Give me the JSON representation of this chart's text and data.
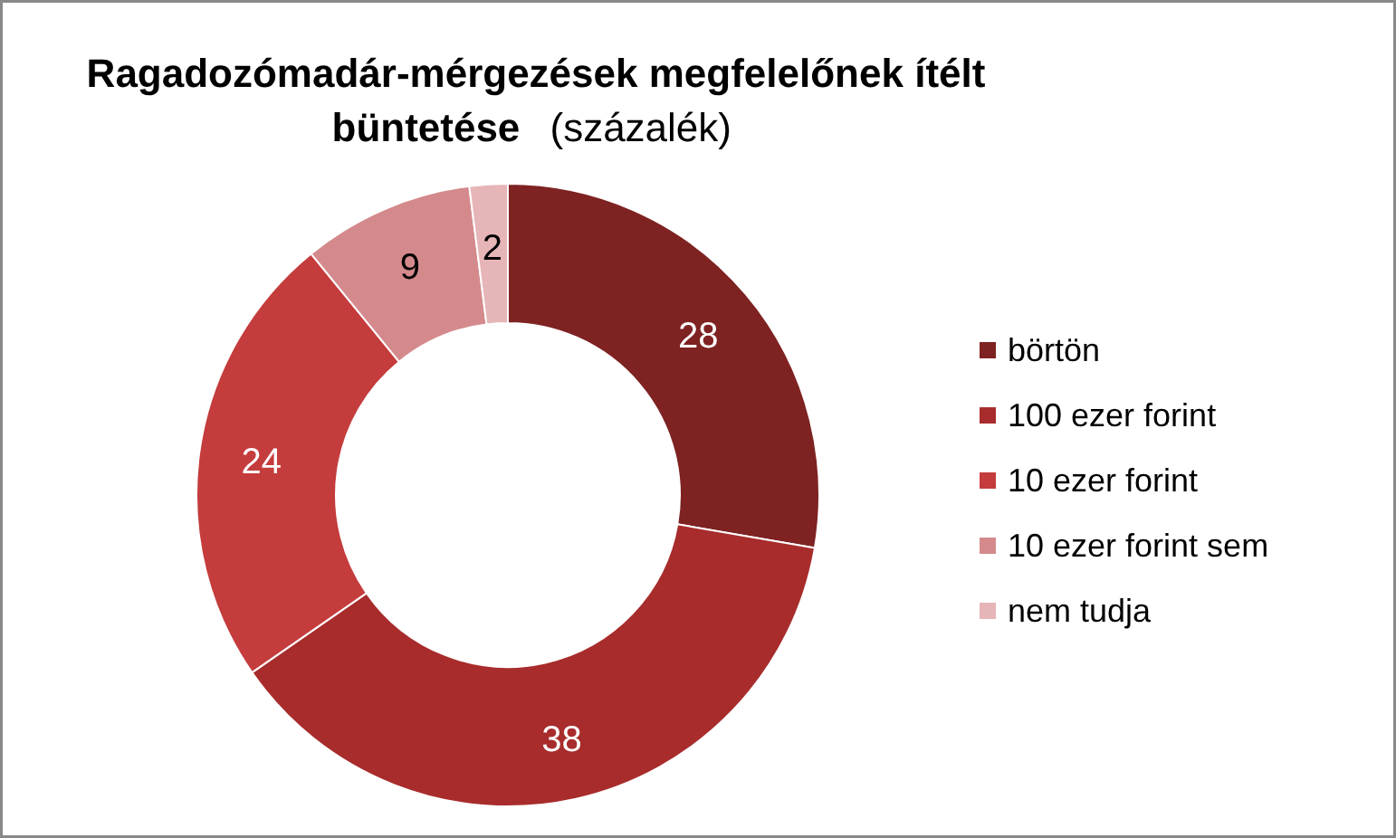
{
  "chart_data": {
    "type": "donut",
    "title": "Ragadozómadár-mérgezések megfelelőnek ítélt büntetése",
    "subtitle": "(százalék)",
    "categories": [
      "börtön",
      "100 ezer forint",
      "10 ezer forint",
      "10 ezer forint sem",
      "nem tudja"
    ],
    "values": [
      28,
      38,
      24,
      9,
      2
    ],
    "colors": [
      "#7e2222",
      "#a82c2c",
      "#c43c3c",
      "#d48a8c",
      "#e6b5b7"
    ],
    "data_labels": true,
    "legend": "right"
  }
}
